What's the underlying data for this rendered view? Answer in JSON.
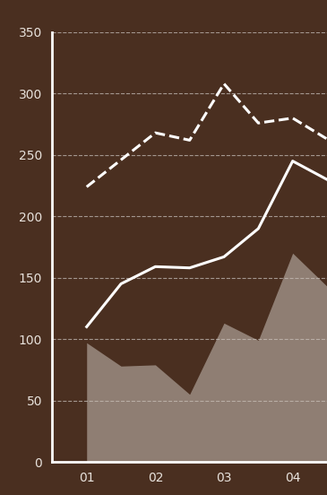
{
  "chart_data": {
    "type": "line",
    "x": [
      1,
      1.5,
      2,
      2.5,
      3,
      3.5,
      4,
      4.5
    ],
    "xlim": [
      0.5,
      4.5
    ],
    "xticks": [
      {
        "value": 1,
        "label": "01"
      },
      {
        "value": 2,
        "label": "02"
      },
      {
        "value": 3,
        "label": "03"
      },
      {
        "value": 4,
        "label": "04"
      }
    ],
    "ylim": [
      0,
      350
    ],
    "yticks": [
      0,
      50,
      100,
      150,
      200,
      250,
      300,
      350
    ],
    "grid": true,
    "series": [
      {
        "type": "line",
        "line_style": "dashed",
        "color": "#ffffff",
        "values": [
          224,
          246,
          268,
          262,
          308,
          276,
          280,
          263
        ]
      },
      {
        "type": "line",
        "line_style": "solid",
        "color": "#ffffff",
        "values": [
          110,
          145,
          159,
          158,
          167,
          190,
          245,
          230
        ]
      },
      {
        "type": "area",
        "color": "#c9c0b8",
        "values": [
          97,
          78,
          79,
          55,
          113,
          99,
          170,
          143
        ]
      }
    ]
  }
}
